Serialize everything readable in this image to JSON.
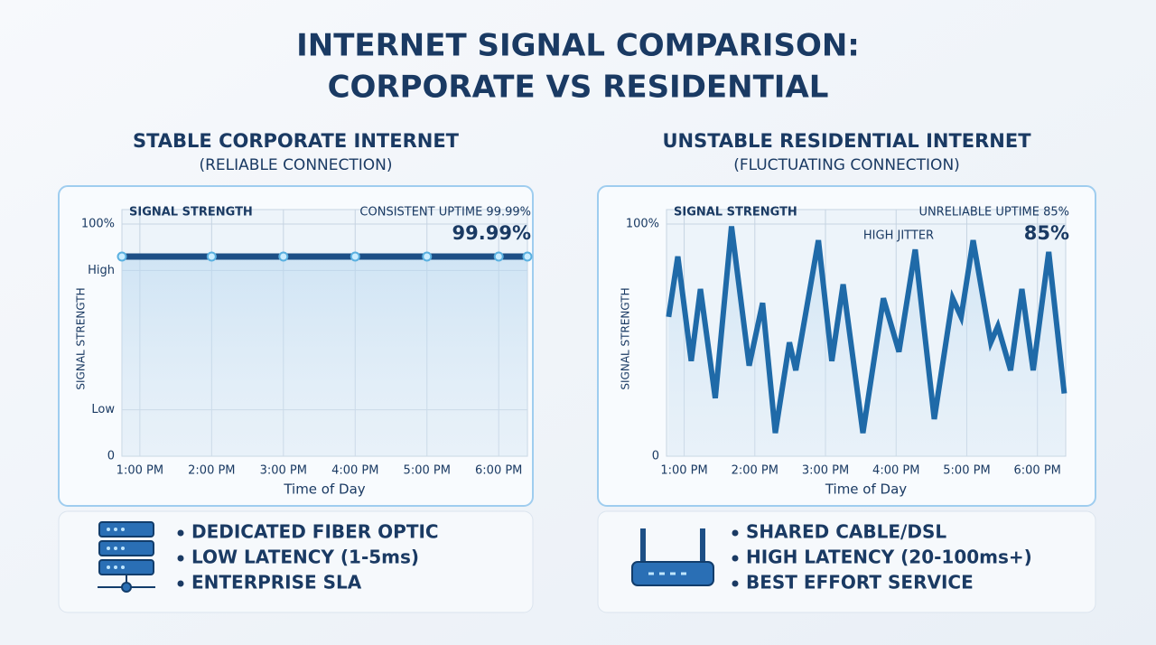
{
  "title_lines": [
    "INTERNET SIGNAL COMPARISON:",
    "CORPORATE VS RESIDENTIAL"
  ],
  "chart_data": [
    {
      "type": "line",
      "title": "STABLE CORPORATE INTERNET",
      "subtitle": "(RELIABLE CONNECTION)",
      "panel_label": "SIGNAL STRENGTH",
      "uptime_text": "CONSISTENT UPTIME 99.99%",
      "headline": "99.99%",
      "x_label": "Time of Day",
      "y_label": "SIGNAL STRENGTH",
      "xlim": [
        12.75,
        18.4
      ],
      "xticks": [
        {
          "value": 13,
          "label": "1:00 PM"
        },
        {
          "value": 14,
          "label": "2:00 PM"
        },
        {
          "value": 15,
          "label": "3:00 PM"
        },
        {
          "value": 16,
          "label": "4:00 PM"
        },
        {
          "value": 17,
          "label": "5:00 PM"
        },
        {
          "value": 18,
          "label": "6:00 PM"
        }
      ],
      "ylim": [
        0,
        100
      ],
      "yticks": [
        0,
        {
          "value": 20,
          "label": "Low"
        },
        {
          "value": 80,
          "label": "High"
        },
        {
          "value": 100,
          "label": "100%"
        }
      ],
      "grid": true,
      "markers": true,
      "series": [
        {
          "color": "#1d4f86",
          "x": [
            12.75,
            14,
            15,
            16,
            17,
            18,
            18.4
          ],
          "values": [
            86,
            86,
            86,
            86,
            86,
            86,
            86
          ]
        }
      ]
    },
    {
      "type": "line",
      "title": "UNSTABLE RESIDENTIAL INTERNET",
      "subtitle": "(FLUCTUATING CONNECTION)",
      "panel_label": "SIGNAL STRENGTH",
      "uptime_text": "UNRELIABLE UPTIME 85%",
      "headline": "85%",
      "annotation": "HIGH JITTER",
      "x_label": "Time of Day",
      "y_label": "SIGNAL STRENGTH",
      "xlim": [
        12.75,
        18.4
      ],
      "xticks": [
        {
          "value": 13,
          "label": "1:00 PM"
        },
        {
          "value": 14,
          "label": "2:00 PM"
        },
        {
          "value": 15,
          "label": "3:00 PM"
        },
        {
          "value": 16,
          "label": "4:00 PM"
        },
        {
          "value": 17,
          "label": "5:00 PM"
        },
        {
          "value": 18,
          "label": "6:00 PM"
        }
      ],
      "ylim": [
        0,
        100
      ],
      "yticks": [
        0,
        {
          "value": 100,
          "label": "100%"
        }
      ],
      "grid": true,
      "markers": false,
      "series": [
        {
          "color": "#1f6aa8",
          "x": [
            12.78,
            12.91,
            13.1,
            13.23,
            13.44,
            13.67,
            13.92,
            14.11,
            14.29,
            14.49,
            14.58,
            14.9,
            15.09,
            15.25,
            15.53,
            15.82,
            16.04,
            16.27,
            16.54,
            16.8,
            16.92,
            17.09,
            17.34,
            17.44,
            17.62,
            17.78,
            17.94,
            18.16,
            18.38
          ],
          "values": [
            60,
            86,
            41,
            72,
            25,
            99,
            39,
            66,
            10,
            49,
            37,
            93,
            41,
            74,
            10,
            68,
            45,
            89,
            16,
            68,
            60,
            93,
            49,
            56,
            37,
            72,
            37,
            88,
            27
          ]
        }
      ]
    }
  ],
  "features": [
    [
      "DEDICATED FIBER OPTIC",
      "LOW LATENCY (1-5ms)",
      "ENTERPRISE SLA"
    ],
    [
      "SHARED CABLE/DSL",
      "HIGH LATENCY (20-100ms+)",
      "BEST EFFORT SERVICE"
    ]
  ]
}
